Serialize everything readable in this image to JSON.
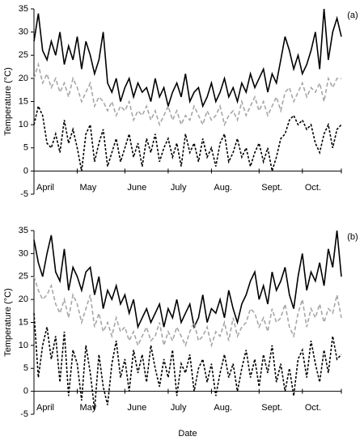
{
  "chart_data": [
    {
      "type": "line",
      "label": "(a)",
      "y_label": "Temperature (°C)",
      "categories": [
        "April",
        null,
        null,
        null,
        null,
        null,
        null,
        null,
        null,
        null,
        "May",
        null,
        null,
        null,
        null,
        null,
        null,
        null,
        null,
        null,
        null,
        "June",
        null,
        null,
        null,
        null,
        null,
        null,
        null,
        null,
        null,
        "July",
        null,
        null,
        null,
        null,
        null,
        null,
        null,
        null,
        null,
        "Aug.",
        null,
        null,
        null,
        null,
        null,
        null,
        null,
        null,
        null,
        null,
        "Sept.",
        null,
        null,
        null,
        null,
        null,
        null,
        null,
        null,
        null,
        "Oct.",
        null,
        null,
        null,
        null,
        null,
        null,
        null,
        null,
        null
      ],
      "ylim": [
        -5,
        35
      ],
      "yticks": [
        -5,
        0,
        5,
        10,
        15,
        20,
        25,
        30,
        35
      ],
      "series": [
        {
          "color": "#000000",
          "dash": "solid",
          "values": [
            28,
            34,
            26,
            24,
            28,
            25,
            30,
            23,
            27,
            24,
            29,
            22,
            28,
            25,
            21,
            24,
            30,
            19,
            17,
            20,
            15,
            18,
            20,
            16,
            19,
            17,
            18,
            15,
            20,
            16,
            18,
            14,
            17,
            19,
            16,
            21,
            15,
            17,
            18,
            14,
            16,
            19,
            15,
            17,
            20,
            16,
            18,
            15,
            19,
            17,
            21,
            18,
            20,
            22,
            17,
            21,
            19,
            24,
            29,
            26,
            22,
            25,
            21,
            23,
            26,
            30,
            22,
            35,
            24,
            30,
            33,
            29
          ]
        },
        {
          "color": "#a6a6a6",
          "dash": "dashed",
          "values": [
            20,
            23,
            19,
            21,
            18,
            20,
            17,
            19,
            16,
            20,
            18,
            15,
            17,
            19,
            14,
            16,
            15,
            13,
            15,
            12,
            14,
            13,
            15,
            11,
            13,
            12,
            14,
            11,
            13,
            10,
            12,
            14,
            11,
            13,
            10,
            12,
            11,
            14,
            12,
            10,
            13,
            11,
            12,
            14,
            10,
            12,
            13,
            11,
            15,
            12,
            14,
            16,
            13,
            15,
            12,
            14,
            16,
            13,
            17,
            18,
            15,
            17,
            19,
            16,
            18,
            17,
            19,
            15,
            20,
            18,
            20,
            20
          ]
        },
        {
          "color": "#000000",
          "dash": "dotted",
          "values": [
            10,
            14,
            12,
            6,
            5,
            8,
            4,
            11,
            6,
            9,
            5,
            0,
            8,
            10,
            2,
            6,
            9,
            1,
            4,
            7,
            2,
            5,
            8,
            3,
            6,
            1,
            7,
            4,
            8,
            2,
            5,
            7,
            3,
            6,
            1,
            8,
            4,
            6,
            2,
            7,
            3,
            5,
            1,
            6,
            8,
            2,
            4,
            7,
            3,
            5,
            1,
            4,
            6,
            2,
            5,
            0,
            3,
            7,
            8,
            11,
            12,
            10,
            11,
            9,
            10,
            6,
            4,
            8,
            10,
            5,
            9,
            10
          ]
        }
      ]
    },
    {
      "type": "line",
      "label": "(b)",
      "y_label": "Temperature (°C)",
      "x_label": "Date",
      "categories": [
        "April",
        null,
        null,
        null,
        null,
        null,
        null,
        null,
        null,
        null,
        "May",
        null,
        null,
        null,
        null,
        null,
        null,
        null,
        null,
        null,
        null,
        "June",
        null,
        null,
        null,
        null,
        null,
        null,
        null,
        null,
        null,
        "July",
        null,
        null,
        null,
        null,
        null,
        null,
        null,
        null,
        null,
        "Aug.",
        null,
        null,
        null,
        null,
        null,
        null,
        null,
        null,
        null,
        null,
        "Sept.",
        null,
        null,
        null,
        null,
        null,
        null,
        null,
        null,
        null,
        "Oct.",
        null,
        null,
        null,
        null,
        null,
        null,
        null,
        null,
        null
      ],
      "ylim": [
        -5,
        35
      ],
      "yticks": [
        -5,
        0,
        5,
        10,
        15,
        20,
        25,
        30,
        35
      ],
      "series": [
        {
          "color": "#000000",
          "dash": "solid",
          "values": [
            33,
            28,
            25,
            30,
            34,
            26,
            24,
            31,
            22,
            27,
            25,
            22,
            26,
            27,
            21,
            25,
            18,
            22,
            20,
            23,
            19,
            21,
            17,
            20,
            14,
            16,
            18,
            15,
            17,
            19,
            14,
            18,
            16,
            20,
            15,
            17,
            19,
            14,
            16,
            21,
            15,
            18,
            17,
            20,
            16,
            22,
            18,
            15,
            19,
            21,
            24,
            26,
            20,
            23,
            19,
            26,
            22,
            24,
            27,
            21,
            18,
            25,
            30,
            22,
            26,
            24,
            28,
            23,
            31,
            27,
            35,
            25
          ]
        },
        {
          "color": "#a6a6a6",
          "dash": "dashed",
          "values": [
            25,
            22,
            20,
            21,
            23,
            19,
            17,
            20,
            16,
            21,
            19,
            15,
            18,
            21,
            14,
            17,
            13,
            15,
            12,
            16,
            13,
            14,
            11,
            13,
            10,
            12,
            14,
            11,
            12,
            15,
            10,
            13,
            11,
            14,
            12,
            10,
            13,
            15,
            11,
            12,
            14,
            10,
            13,
            12,
            15,
            11,
            16,
            12,
            14,
            15,
            18,
            17,
            14,
            16,
            13,
            18,
            15,
            16,
            19,
            14,
            12,
            17,
            20,
            14,
            18,
            16,
            19,
            15,
            18,
            17,
            21,
            16
          ]
        },
        {
          "color": "#000000",
          "dash": "dotted",
          "values": [
            17,
            3,
            10,
            14,
            7,
            12,
            2,
            13,
            -1,
            9,
            6,
            -2,
            10,
            4,
            -4,
            8,
            1,
            -3,
            6,
            11,
            3,
            7,
            0,
            9,
            4,
            8,
            2,
            10,
            5,
            1,
            7,
            3,
            9,
            -1,
            6,
            4,
            8,
            0,
            5,
            7,
            2,
            6,
            -1,
            4,
            8,
            3,
            6,
            0,
            5,
            9,
            3,
            7,
            1,
            8,
            4,
            10,
            2,
            6,
            0,
            5,
            -1,
            7,
            9,
            3,
            11,
            6,
            2,
            9,
            4,
            12,
            7,
            8
          ]
        }
      ]
    }
  ]
}
